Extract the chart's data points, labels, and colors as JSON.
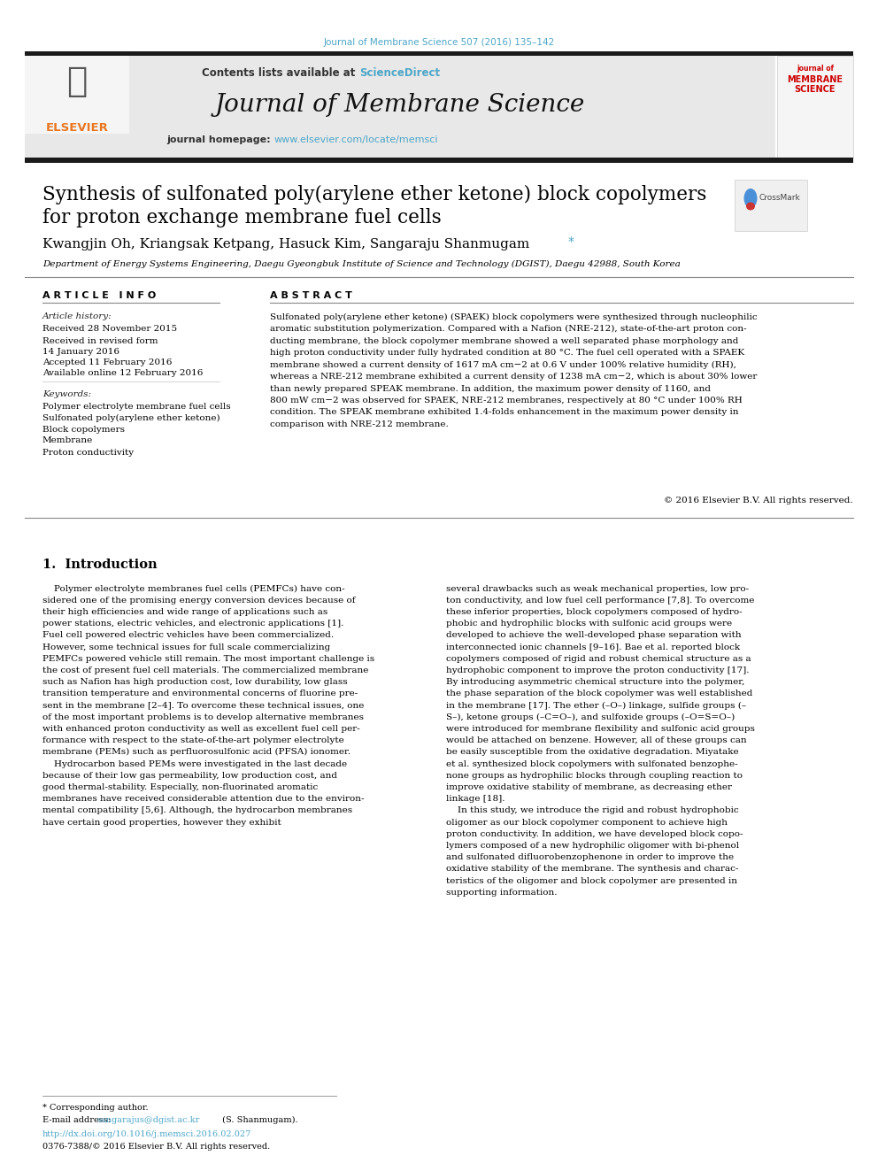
{
  "page_width": 9.92,
  "page_height": 13.23,
  "bg_color": "#ffffff",
  "journal_ref": "Journal of Membrane Science 507 (2016) 135–142",
  "journal_ref_color": "#4da6c8",
  "header_bg": "#e8e8e8",
  "contents_text": "Contents lists available at ",
  "sciencedirect_text": "ScienceDirect",
  "sciencedirect_color": "#4da6c8",
  "journal_title": "Journal of Membrane Science",
  "journal_homepage_label": "journal homepage: ",
  "journal_url": "www.elsevier.com/locate/memsci",
  "journal_url_color": "#4da6c8",
  "paper_title_line1": "Synthesis of sulfonated poly(arylene ether ketone) block copolymers",
  "paper_title_line2": "for proton exchange membrane fuel cells",
  "authors": "Kwangjin Oh, Kriangsak Ketpang, Hasuck Kim, Sangaraju Shanmugam",
  "corresponding_marker": "*",
  "affiliation": "Department of Energy Systems Engineering, Daegu Gyeongbuk Institute of Science and Technology (DGIST), Daegu 42988, South Korea",
  "article_info_title": "A R T I C L E   I N F O",
  "abstract_title": "A B S T R A C T",
  "article_history_label": "Article history:",
  "received_label": "Received 28 November 2015",
  "revised_label": "Received in revised form",
  "revised_date": "14 January 2016",
  "accepted_label": "Accepted 11 February 2016",
  "available_label": "Available online 12 February 2016",
  "keywords_label": "Keywords:",
  "keyword1": "Polymer electrolyte membrane fuel cells",
  "keyword2": "Sulfonated poly(arylene ether ketone)",
  "keyword3": "Block copolymers",
  "keyword4": "Membrane",
  "keyword5": "Proton conductivity",
  "copyright": "© 2016 Elsevier B.V. All rights reserved.",
  "intro_title": "1.  Introduction",
  "footnote_corresponding": "* Corresponding author.",
  "footnote_email_label": "E-mail address: ",
  "footnote_email": "sangarajus@dgist.ac.kr",
  "footnote_email_color": "#4da6c8",
  "footnote_email_suffix": " (S. Shanmugam).",
  "footnote_doi": "http://dx.doi.org/10.1016/j.memsci.2016.02.027",
  "footnote_doi_color": "#4da6c8",
  "footnote_issn": "0376-7388/© 2016 Elsevier B.V. All rights reserved.",
  "top_bar_color": "#1a1a1a",
  "divider_color": "#cccccc",
  "text_color": "#000000",
  "abstract_lines": [
    "Sulfonated poly(arylene ether ketone) (SPAEK) block copolymers were synthesized through nucleophilic",
    "aromatic substitution polymerization. Compared with a Nafion (NRE-212), state-of-the-art proton con-",
    "ducting membrane, the block copolymer membrane showed a well separated phase morphology and",
    "high proton conductivity under fully hydrated condition at 80 °C. The fuel cell operated with a SPAEK",
    "membrane showed a current density of 1617 mA cm−2 at 0.6 V under 100% relative humidity (RH),",
    "whereas a NRE-212 membrane exhibited a current density of 1238 mA cm−2, which is about 30% lower",
    "than newly prepared SPEAK membrane. In addition, the maximum power density of 1160, and",
    "800 mW cm−2 was observed for SPAEK, NRE-212 membranes, respectively at 80 °C under 100% RH",
    "condition. The SPEAK membrane exhibited 1.4-folds enhancement in the maximum power density in",
    "comparison with NRE-212 membrane."
  ],
  "col1_lines": [
    "    Polymer electrolyte membranes fuel cells (PEMFCs) have con-",
    "sidered one of the promising energy conversion devices because of",
    "their high efficiencies and wide range of applications such as",
    "power stations, electric vehicles, and electronic applications [1].",
    "Fuel cell powered electric vehicles have been commercialized.",
    "However, some technical issues for full scale commercializing",
    "PEMFCs powered vehicle still remain. The most important challenge is",
    "the cost of present fuel cell materials. The commercialized membrane",
    "such as Nafion has high production cost, low durability, low glass",
    "transition temperature and environmental concerns of fluorine pre-",
    "sent in the membrane [2–4]. To overcome these technical issues, one",
    "of the most important problems is to develop alternative membranes",
    "with enhanced proton conductivity as well as excellent fuel cell per-",
    "formance with respect to the state-of-the-art polymer electrolyte",
    "membrane (PEMs) such as perfluorosulfonic acid (PFSA) ionomer.",
    "    Hydrocarbon based PEMs were investigated in the last decade",
    "because of their low gas permeability, low production cost, and",
    "good thermal-stability. Especially, non-fluorinated aromatic",
    "membranes have received considerable attention due to the environ-",
    "mental compatibility [5,6]. Although, the hydrocarbon membranes",
    "have certain good properties, however they exhibit"
  ],
  "col2_lines": [
    "several drawbacks such as weak mechanical properties, low pro-",
    "ton conductivity, and low fuel cell performance [7,8]. To overcome",
    "these inferior properties, block copolymers composed of hydro-",
    "phobic and hydrophilic blocks with sulfonic acid groups were",
    "developed to achieve the well-developed phase separation with",
    "interconnected ionic channels [9–16]. Bae et al. reported block",
    "copolymers composed of rigid and robust chemical structure as a",
    "hydrophobic component to improve the proton conductivity [17].",
    "By introducing asymmetric chemical structure into the polymer,",
    "the phase separation of the block copolymer was well established",
    "in the membrane [17]. The ether (–O–) linkage, sulfide groups (–",
    "S–), ketone groups (–C=O–), and sulfoxide groups (–O=S=O–)",
    "were introduced for membrane flexibility and sulfonic acid groups",
    "would be attached on benzene. However, all of these groups can",
    "be easily susceptible from the oxidative degradation. Miyatake",
    "et al. synthesized block copolymers with sulfonated benzophe-",
    "none groups as hydrophilic blocks through coupling reaction to",
    "improve oxidative stability of membrane, as decreasing ether",
    "linkage [18].",
    "    In this study, we introduce the rigid and robust hydrophobic",
    "oligomer as our block copolymer component to achieve high",
    "proton conductivity. In addition, we have developed block copo-",
    "lymers composed of a new hydrophilic oligomer with bi-phenol",
    "and sulfonated difluorobenzophenone in order to improve the",
    "oxidative stability of the membrane. The synthesis and charac-",
    "teristics of the oligomer and block copolymer are presented in",
    "supporting information."
  ]
}
